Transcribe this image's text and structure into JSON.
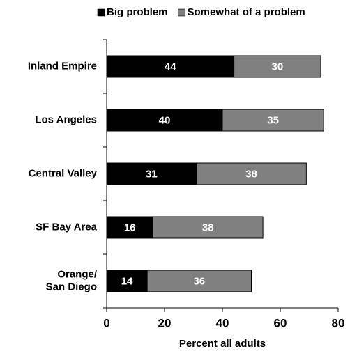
{
  "chart_data": {
    "type": "stacked_barh",
    "categories": [
      "Inland Empire",
      "Los Angeles",
      "Central Valley",
      "SF Bay Area",
      "Orange/\nSan Diego"
    ],
    "series": [
      {
        "name": "Big problem",
        "color": "#000000",
        "values": [
          44,
          40,
          31,
          16,
          14
        ]
      },
      {
        "name": "Somewhat of a problem",
        "color": "#808080",
        "values": [
          30,
          35,
          38,
          38,
          36
        ]
      }
    ],
    "xlim": [
      0,
      80
    ],
    "xticks": [
      0,
      20,
      40,
      60,
      80
    ],
    "xlabel": "Percent all adults",
    "legend": "top"
  }
}
